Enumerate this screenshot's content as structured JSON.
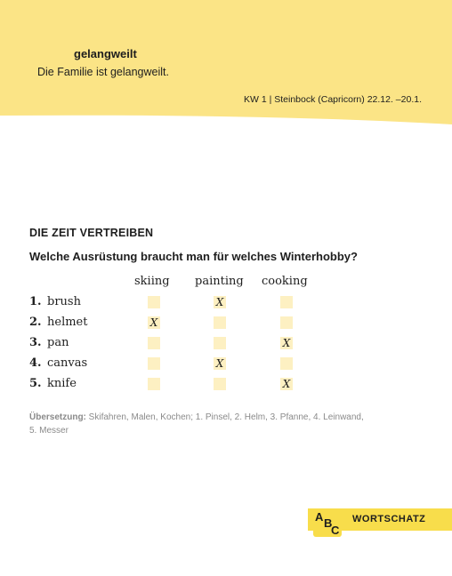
{
  "header": {
    "word": "gelangweilt",
    "example": "Die Familie ist gelangweilt.",
    "week_info": "KW 1 | Steinbock (Capricorn) 22.12. –20.1.",
    "banner_color": "#fbe486"
  },
  "exercise": {
    "heading": "DIE ZEIT VERTREIBEN",
    "question": "Welche Ausrüstung braucht man für welches Winterhobby?",
    "columns": [
      "skiing",
      "painting",
      "cooking"
    ],
    "rows": [
      {
        "num": "1.",
        "word": "brush",
        "marks": [
          "",
          "X",
          ""
        ]
      },
      {
        "num": "2.",
        "word": "helmet",
        "marks": [
          "X",
          "",
          ""
        ]
      },
      {
        "num": "3.",
        "word": "pan",
        "marks": [
          "",
          "",
          "X"
        ]
      },
      {
        "num": "4.",
        "word": "canvas",
        "marks": [
          "",
          "X",
          ""
        ]
      },
      {
        "num": "5.",
        "word": "knife",
        "marks": [
          "",
          "",
          "X"
        ]
      }
    ],
    "checkbox_color": "#fdf0c2"
  },
  "translation": {
    "label": "Übersetzung:",
    "text": " Skifahren, Malen, Kochen; 1. Pinsel, 2. Helm, 3. Pfanne, 4. Leinwand, 5. Messer"
  },
  "badge": {
    "logo_letters": [
      "A",
      "B",
      "C"
    ],
    "label": "WORTSCHATZ",
    "color": "#f8dd4b"
  }
}
